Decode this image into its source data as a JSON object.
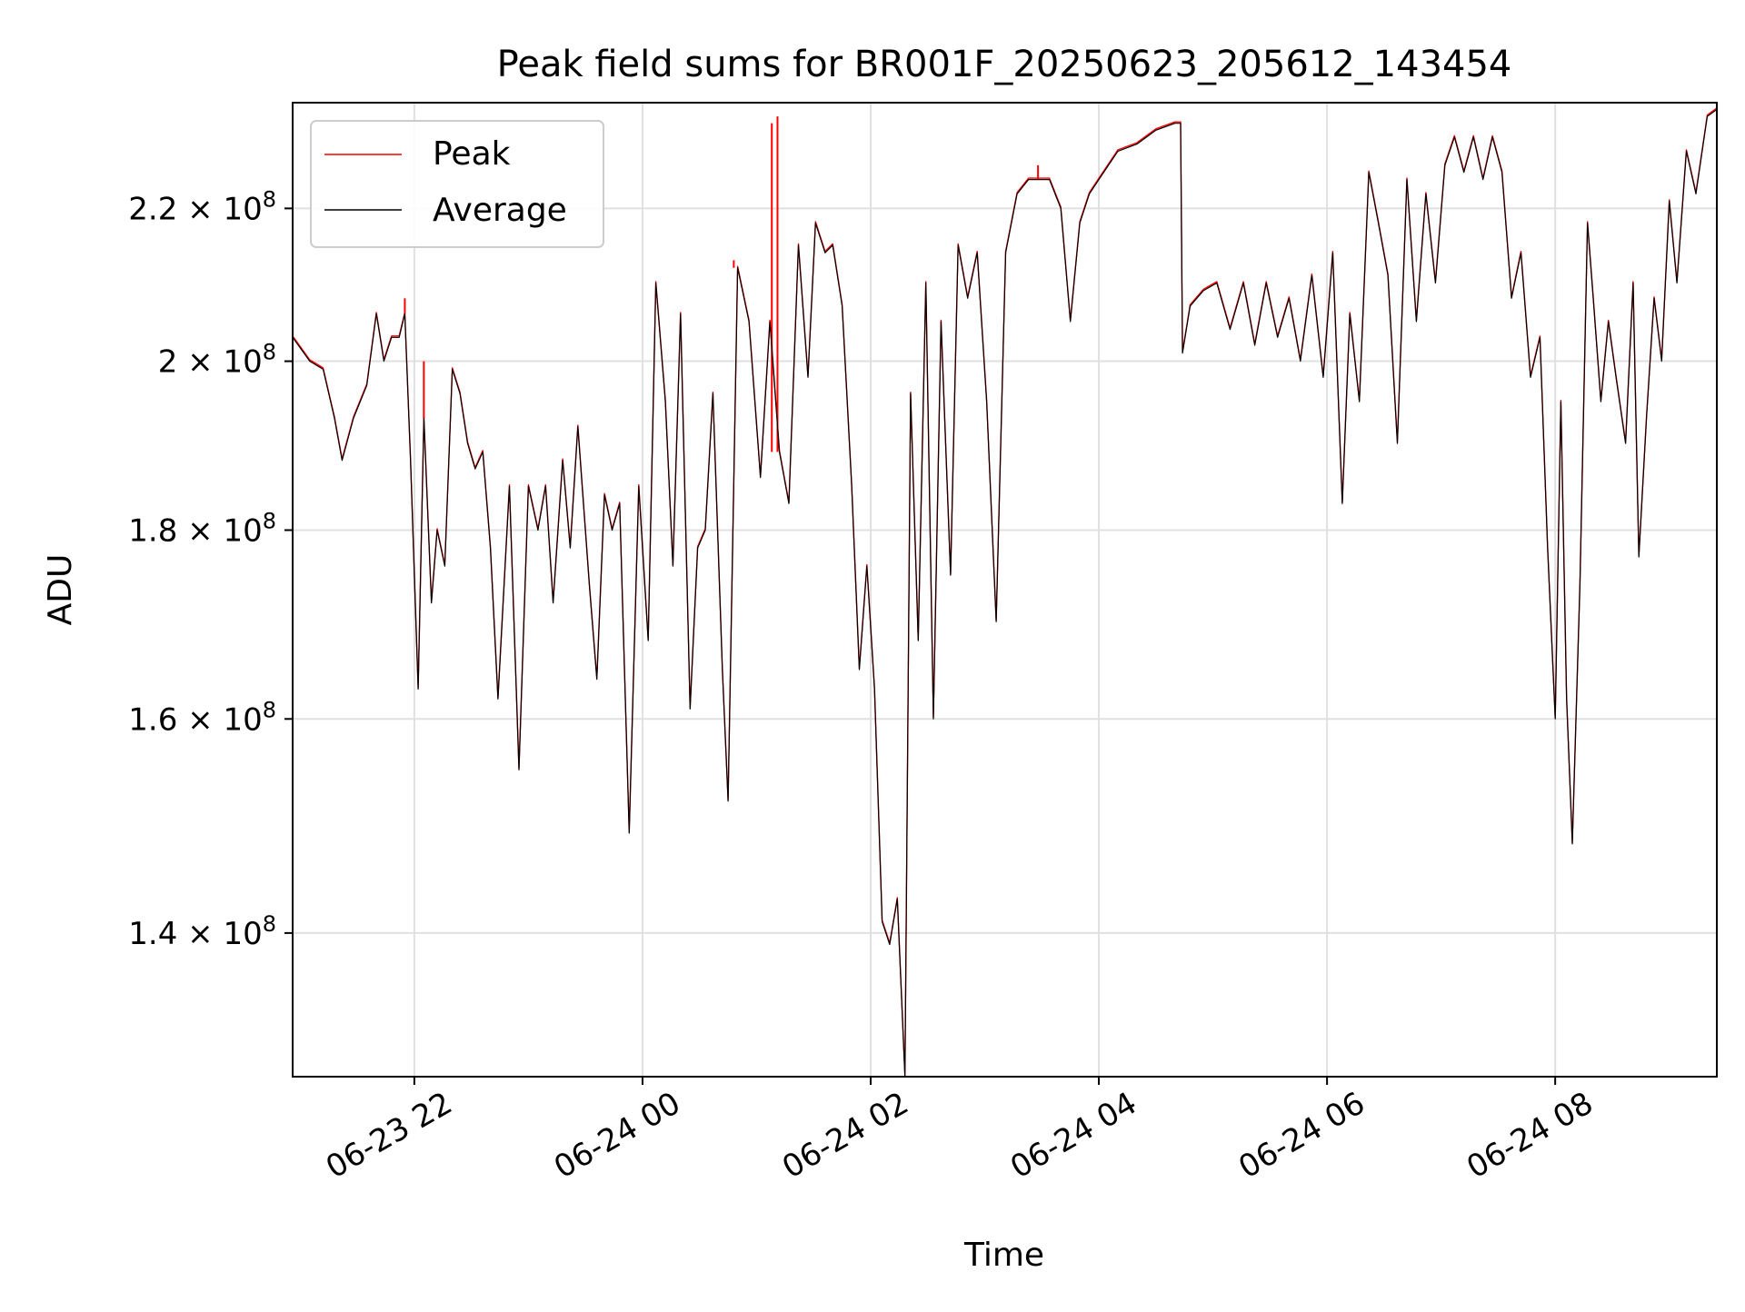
{
  "chart_data": {
    "type": "line",
    "title": "Peak field sums for BR001F_20250623_205612_143454",
    "xlabel": "Time",
    "ylabel": "ADU",
    "y_scale": "log",
    "xlim": [
      "2025-06-23 20:56",
      "2025-06-24 09:25"
    ],
    "ylim": [
      128000000,
      235000000
    ],
    "x_ticks": [
      {
        "value": "2025-06-23 22:00",
        "label": "06-23 22"
      },
      {
        "value": "2025-06-24 00:00",
        "label": "06-24 00"
      },
      {
        "value": "2025-06-24 02:00",
        "label": "06-24 02"
      },
      {
        "value": "2025-06-24 04:00",
        "label": "06-24 04"
      },
      {
        "value": "2025-06-24 06:00",
        "label": "06-24 06"
      },
      {
        "value": "2025-06-24 08:00",
        "label": "06-24 08"
      }
    ],
    "y_ticks": [
      {
        "value": 140000000,
        "mantissa": "1.4",
        "exponent": "8"
      },
      {
        "value": 160000000,
        "mantissa": "1.6",
        "exponent": "8"
      },
      {
        "value": 180000000,
        "mantissa": "1.8",
        "exponent": "8"
      },
      {
        "value": 200000000,
        "mantissa": "2",
        "exponent": "8"
      },
      {
        "value": 220000000,
        "mantissa": "2.2",
        "exponent": "8"
      }
    ],
    "grid": true,
    "legend": {
      "position": "top-left",
      "entries": [
        "Peak",
        "Average"
      ]
    },
    "series": [
      {
        "name": "Peak",
        "color": "#ff0000",
        "line_width": 1.4,
        "average": [
          [
            "2025-06-23 20:56",
            203
          ],
          [
            "2025-06-23 21:05",
            200
          ],
          [
            "2025-06-23 21:12",
            199
          ],
          [
            "2025-06-23 21:18",
            193
          ],
          [
            "2025-06-23 21:22",
            188
          ],
          [
            "2025-06-23 21:28",
            193
          ],
          [
            "2025-06-23 21:35",
            197
          ],
          [
            "2025-06-23 21:40",
            206
          ],
          [
            "2025-06-23 21:44",
            200
          ],
          [
            "2025-06-23 21:48",
            203
          ],
          [
            "2025-06-23 21:52",
            203
          ],
          [
            "2025-06-23 21:55",
            206
          ],
          [
            "2025-06-23 21:58",
            188
          ],
          [
            "2025-06-23 22:02",
            163
          ],
          [
            "2025-06-23 22:05",
            193
          ],
          [
            "2025-06-23 22:09",
            172
          ],
          [
            "2025-06-23 22:12",
            180
          ],
          [
            "2025-06-23 22:16",
            176
          ],
          [
            "2025-06-23 22:20",
            199
          ],
          [
            "2025-06-23 22:24",
            196
          ],
          [
            "2025-06-23 22:28",
            190
          ],
          [
            "2025-06-23 22:32",
            187
          ],
          [
            "2025-06-23 22:36",
            189
          ],
          [
            "2025-06-23 22:40",
            178
          ],
          [
            "2025-06-23 22:44",
            162
          ],
          [
            "2025-06-23 22:50",
            185
          ],
          [
            "2025-06-23 22:55",
            155
          ],
          [
            "2025-06-23 23:00",
            185
          ],
          [
            "2025-06-23 23:05",
            180
          ],
          [
            "2025-06-23 23:09",
            185
          ],
          [
            "2025-06-23 23:13",
            172
          ],
          [
            "2025-06-23 23:18",
            188
          ],
          [
            "2025-06-23 23:22",
            178
          ],
          [
            "2025-06-23 23:26",
            192
          ],
          [
            "2025-06-23 23:32",
            174
          ],
          [
            "2025-06-23 23:36",
            164
          ],
          [
            "2025-06-23 23:40",
            184
          ],
          [
            "2025-06-23 23:44",
            180
          ],
          [
            "2025-06-23 23:48",
            183
          ],
          [
            "2025-06-23 23:53",
            149
          ],
          [
            "2025-06-23 23:58",
            185
          ],
          [
            "2025-06-24 00:03",
            168
          ],
          [
            "2025-06-24 00:07",
            210
          ],
          [
            "2025-06-24 00:12",
            195
          ],
          [
            "2025-06-24 00:16",
            176
          ],
          [
            "2025-06-24 00:20",
            206
          ],
          [
            "2025-06-24 00:25",
            161
          ],
          [
            "2025-06-24 00:29",
            178
          ],
          [
            "2025-06-24 00:33",
            180
          ],
          [
            "2025-06-24 00:37",
            196
          ],
          [
            "2025-06-24 00:42",
            165
          ],
          [
            "2025-06-24 00:45",
            152
          ],
          [
            "2025-06-24 00:50",
            212
          ],
          [
            "2025-06-24 00:56",
            205
          ],
          [
            "2025-06-24 01:02",
            186
          ],
          [
            "2025-06-24 01:07",
            205
          ],
          [
            "2025-06-24 01:12",
            189
          ],
          [
            "2025-06-24 01:17",
            183
          ],
          [
            "2025-06-24 01:22",
            215
          ],
          [
            "2025-06-24 01:27",
            198
          ],
          [
            "2025-06-24 01:31",
            218
          ],
          [
            "2025-06-24 01:36",
            214
          ],
          [
            "2025-06-24 01:40",
            215
          ],
          [
            "2025-06-24 01:45",
            207
          ],
          [
            "2025-06-24 01:50",
            185
          ],
          [
            "2025-06-24 01:54",
            165
          ],
          [
            "2025-06-24 01:58",
            176
          ],
          [
            "2025-06-24 02:02",
            163
          ],
          [
            "2025-06-24 02:06",
            141
          ],
          [
            "2025-06-24 02:10",
            139
          ],
          [
            "2025-06-24 02:14",
            143
          ],
          [
            "2025-06-24 02:18",
            128
          ],
          [
            "2025-06-24 02:21",
            196
          ],
          [
            "2025-06-24 02:25",
            168
          ],
          [
            "2025-06-24 02:29",
            210
          ],
          [
            "2025-06-24 02:33",
            160
          ],
          [
            "2025-06-24 02:37",
            205
          ],
          [
            "2025-06-24 02:42",
            175
          ],
          [
            "2025-06-24 02:46",
            215
          ],
          [
            "2025-06-24 02:51",
            208
          ],
          [
            "2025-06-24 02:56",
            214
          ],
          [
            "2025-06-24 03:01",
            195
          ],
          [
            "2025-06-24 03:06",
            170
          ],
          [
            "2025-06-24 03:11",
            214
          ],
          [
            "2025-06-24 03:17",
            222
          ],
          [
            "2025-06-24 03:23",
            224
          ],
          [
            "2025-06-24 03:29",
            224
          ],
          [
            "2025-06-24 03:34",
            224
          ],
          [
            "2025-06-24 03:40",
            220
          ],
          [
            "2025-06-24 03:45",
            205
          ],
          [
            "2025-06-24 03:50",
            218
          ],
          [
            "2025-06-24 03:55",
            222
          ],
          [
            "2025-06-24 04:00",
            224
          ],
          [
            "2025-06-24 04:10",
            228
          ],
          [
            "2025-06-24 04:20",
            229
          ],
          [
            "2025-06-24 04:30",
            231
          ],
          [
            "2025-06-24 04:40",
            232
          ],
          [
            "2025-06-24 04:43",
            232
          ],
          [
            "2025-06-24 04:44",
            201
          ],
          [
            "2025-06-24 04:48",
            207
          ],
          [
            "2025-06-24 04:55",
            209
          ],
          [
            "2025-06-24 05:02",
            210
          ],
          [
            "2025-06-24 05:09",
            204
          ],
          [
            "2025-06-24 05:16",
            210
          ],
          [
            "2025-06-24 05:22",
            202
          ],
          [
            "2025-06-24 05:28",
            210
          ],
          [
            "2025-06-24 05:34",
            203
          ],
          [
            "2025-06-24 05:40",
            208
          ],
          [
            "2025-06-24 05:46",
            200
          ],
          [
            "2025-06-24 05:52",
            211
          ],
          [
            "2025-06-24 05:58",
            198
          ],
          [
            "2025-06-24 06:03",
            214
          ],
          [
            "2025-06-24 06:08",
            183
          ],
          [
            "2025-06-24 06:12",
            206
          ],
          [
            "2025-06-24 06:17",
            195
          ],
          [
            "2025-06-24 06:22",
            225
          ],
          [
            "2025-06-24 06:27",
            218
          ],
          [
            "2025-06-24 06:32",
            211
          ],
          [
            "2025-06-24 06:37",
            190
          ],
          [
            "2025-06-24 06:42",
            224
          ],
          [
            "2025-06-24 06:47",
            205
          ],
          [
            "2025-06-24 06:52",
            222
          ],
          [
            "2025-06-24 06:57",
            210
          ],
          [
            "2025-06-24 07:02",
            226
          ],
          [
            "2025-06-24 07:07",
            230
          ],
          [
            "2025-06-24 07:12",
            225
          ],
          [
            "2025-06-24 07:17",
            230
          ],
          [
            "2025-06-24 07:22",
            224
          ],
          [
            "2025-06-24 07:27",
            230
          ],
          [
            "2025-06-24 07:32",
            225
          ],
          [
            "2025-06-24 07:37",
            208
          ],
          [
            "2025-06-24 07:42",
            214
          ],
          [
            "2025-06-24 07:47",
            198
          ],
          [
            "2025-06-24 07:52",
            203
          ],
          [
            "2025-06-24 07:56",
            178
          ],
          [
            "2025-06-24 08:00",
            160
          ],
          [
            "2025-06-24 08:03",
            195
          ],
          [
            "2025-06-24 08:06",
            162
          ],
          [
            "2025-06-24 08:09",
            148
          ],
          [
            "2025-06-24 08:13",
            174
          ],
          [
            "2025-06-24 08:17",
            218
          ],
          [
            "2025-06-24 08:20",
            208
          ],
          [
            "2025-06-24 08:24",
            195
          ],
          [
            "2025-06-24 08:28",
            205
          ],
          [
            "2025-06-24 08:32",
            198
          ],
          [
            "2025-06-24 08:37",
            190
          ],
          [
            "2025-06-24 08:41",
            210
          ],
          [
            "2025-06-24 08:44",
            177
          ],
          [
            "2025-06-24 08:48",
            193
          ],
          [
            "2025-06-24 08:52",
            208
          ],
          [
            "2025-06-24 08:56",
            200
          ],
          [
            "2025-06-24 09:00",
            221
          ],
          [
            "2025-06-24 09:04",
            210
          ],
          [
            "2025-06-24 09:09",
            228
          ],
          [
            "2025-06-24 09:14",
            222
          ],
          [
            "2025-06-24 09:20",
            233
          ],
          [
            "2025-06-24 09:25",
            234
          ]
        ],
        "spikes": [
          [
            "2025-06-23 21:55",
            208
          ],
          [
            "2025-06-23 22:05",
            200
          ],
          [
            "2025-06-24 00:48",
            213
          ],
          [
            "2025-06-24 01:08",
            232
          ],
          [
            "2025-06-24 01:11",
            233
          ],
          [
            "2025-06-24 03:28",
            226
          ]
        ]
      },
      {
        "name": "Average",
        "color": "#000000",
        "line_width": 1.2
      }
    ]
  }
}
